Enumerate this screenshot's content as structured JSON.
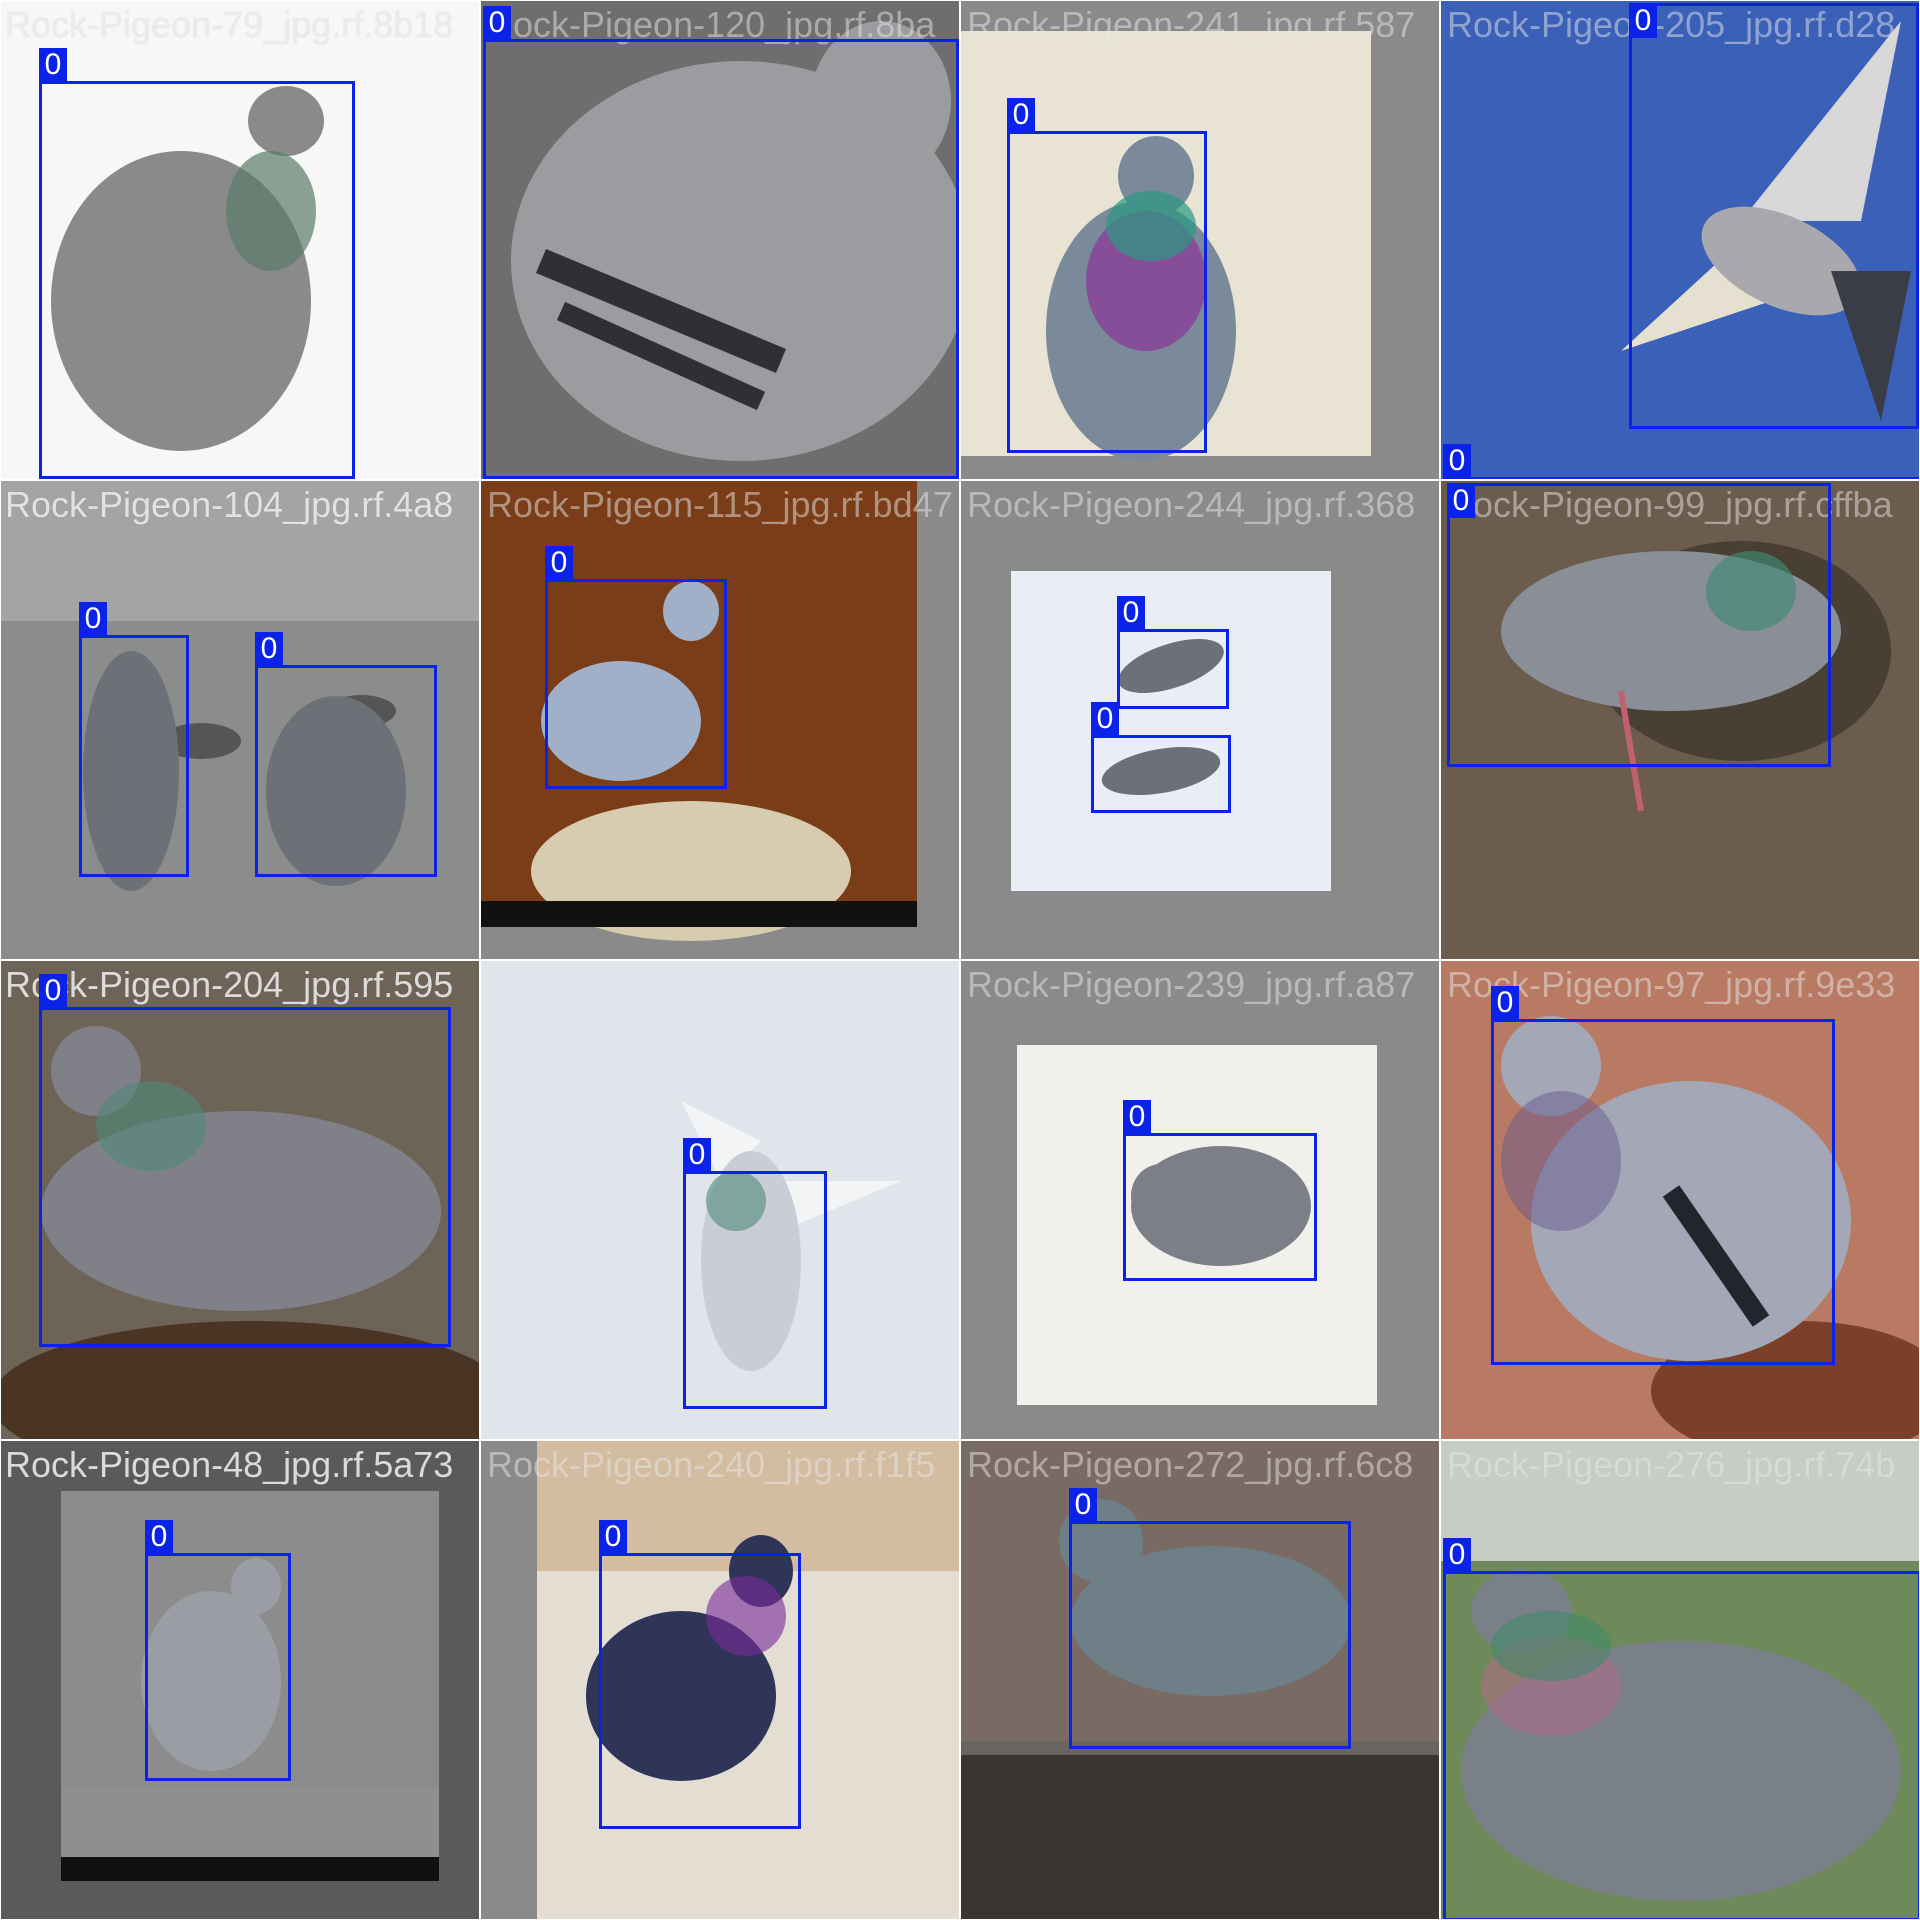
{
  "box_color": "#0b22e8",
  "tiles": [
    {
      "title": "Rock-Pigeon-79_jpg.rf.8b18",
      "overlap_title": "",
      "bg": "#f7f7f7",
      "mat": "",
      "bird_color": "#8a8a8c",
      "boxes": [
        {
          "label": "0"
        }
      ]
    },
    {
      "title": "",
      "overlap_title": "Rock-Pigeon-120_jpg.rf.8ba",
      "bg": "#6f6e6c",
      "mat": "",
      "bird_color": "#9a9ca0",
      "boxes": [
        {
          "label": "0"
        }
      ]
    },
    {
      "title": "",
      "overlap_title": "Rock-Pigeon-241_jpg.rf.587",
      "bg": "#e9e3d4",
      "mat": "#8a8a8a",
      "bird_color": "#7b8a9a",
      "boxes": [
        {
          "label": "0"
        }
      ]
    },
    {
      "title": "",
      "overlap_title": "Rock-Pigeon-205_jpg.rf.d28",
      "bg": "#3a60b8",
      "mat": "",
      "bird_color": "#a9a9ad",
      "boxes": [
        {
          "label": "0"
        },
        {
          "label": "0"
        }
      ]
    },
    {
      "title": "Rock-Pigeon-104_jpg.rf.4a8",
      "overlap_title": "",
      "bg": "#8b8c8c",
      "mat": "",
      "bird_color": "#6e7077",
      "boxes": [
        {
          "label": "0"
        },
        {
          "label": "0"
        }
      ]
    },
    {
      "title": "",
      "overlap_title": "Rock-Pigeon-115_jpg.rf.bd47",
      "bg": "#7a3d18",
      "mat": "#8a8a8a",
      "bird_color": "#9fb0c8",
      "boxes": [
        {
          "label": "0"
        }
      ]
    },
    {
      "title": "",
      "overlap_title": "Rock-Pigeon-244_jpg.rf.368",
      "bg": "#e8edf6",
      "mat": "#8a8a8a",
      "bird_color": "#6c7078",
      "boxes": [
        {
          "label": "0"
        },
        {
          "label": "0"
        }
      ]
    },
    {
      "title": "",
      "overlap_title": "Rock-Pigeon-99_jpg.rf.cffba",
      "bg": "#6b5c4d",
      "mat": "",
      "bird_color": "#8a8e96",
      "boxes": [
        {
          "label": "0"
        }
      ]
    },
    {
      "title": "Rock-Pigeon-204_jpg.rf.595",
      "overlap_title": "",
      "bg": "#6d6356",
      "mat": "",
      "bird_color": "#7f8088",
      "boxes": [
        {
          "label": "0"
        }
      ]
    },
    {
      "title": "",
      "overlap_title": "",
      "bg": "#dfe5ea",
      "mat": "",
      "bird_color": "#c9ced6",
      "boxes": [
        {
          "label": "0"
        }
      ]
    },
    {
      "title": "",
      "overlap_title": "Rock-Pigeon-239_jpg.rf.a87",
      "bg": "#f2f0ea",
      "mat": "#8a8a8a",
      "bird_color": "#7c7f88",
      "boxes": [
        {
          "label": "0"
        }
      ]
    },
    {
      "title": "",
      "overlap_title": "Rock-Pigeon-97_jpg.rf.9e33",
      "bg": "#b97a63",
      "mat": "",
      "bird_color": "#a3a7b6",
      "boxes": [
        {
          "label": "0"
        }
      ]
    },
    {
      "title": "Rock-Pigeon-48_jpg.rf.5a73",
      "overlap_title": "",
      "bg": "#8c8c8c",
      "mat": "#5a5a5a",
      "bird_color": "#9a9ea4",
      "boxes": [
        {
          "label": "0"
        }
      ]
    },
    {
      "title": "",
      "overlap_title": "Rock-Pigeon-240_jpg.rf.f1f5",
      "bg": "#e3ddd2",
      "mat": "#8a8a8a",
      "bird_color": "#2e3558",
      "boxes": [
        {
          "label": "0"
        }
      ]
    },
    {
      "title": "",
      "overlap_title": "Rock-Pigeon-272_jpg.rf.6c8",
      "bg": "#7a6a64",
      "mat": "",
      "bird_color": "#6f7f88",
      "boxes": [
        {
          "label": "0"
        }
      ]
    },
    {
      "title": "",
      "overlap_title": "Rock-Pigeon-276_jpg.rf.74b",
      "bg": "#6f8a5a",
      "mat": "",
      "bird_color": "#7a8088",
      "boxes": [
        {
          "label": "0"
        }
      ]
    }
  ]
}
